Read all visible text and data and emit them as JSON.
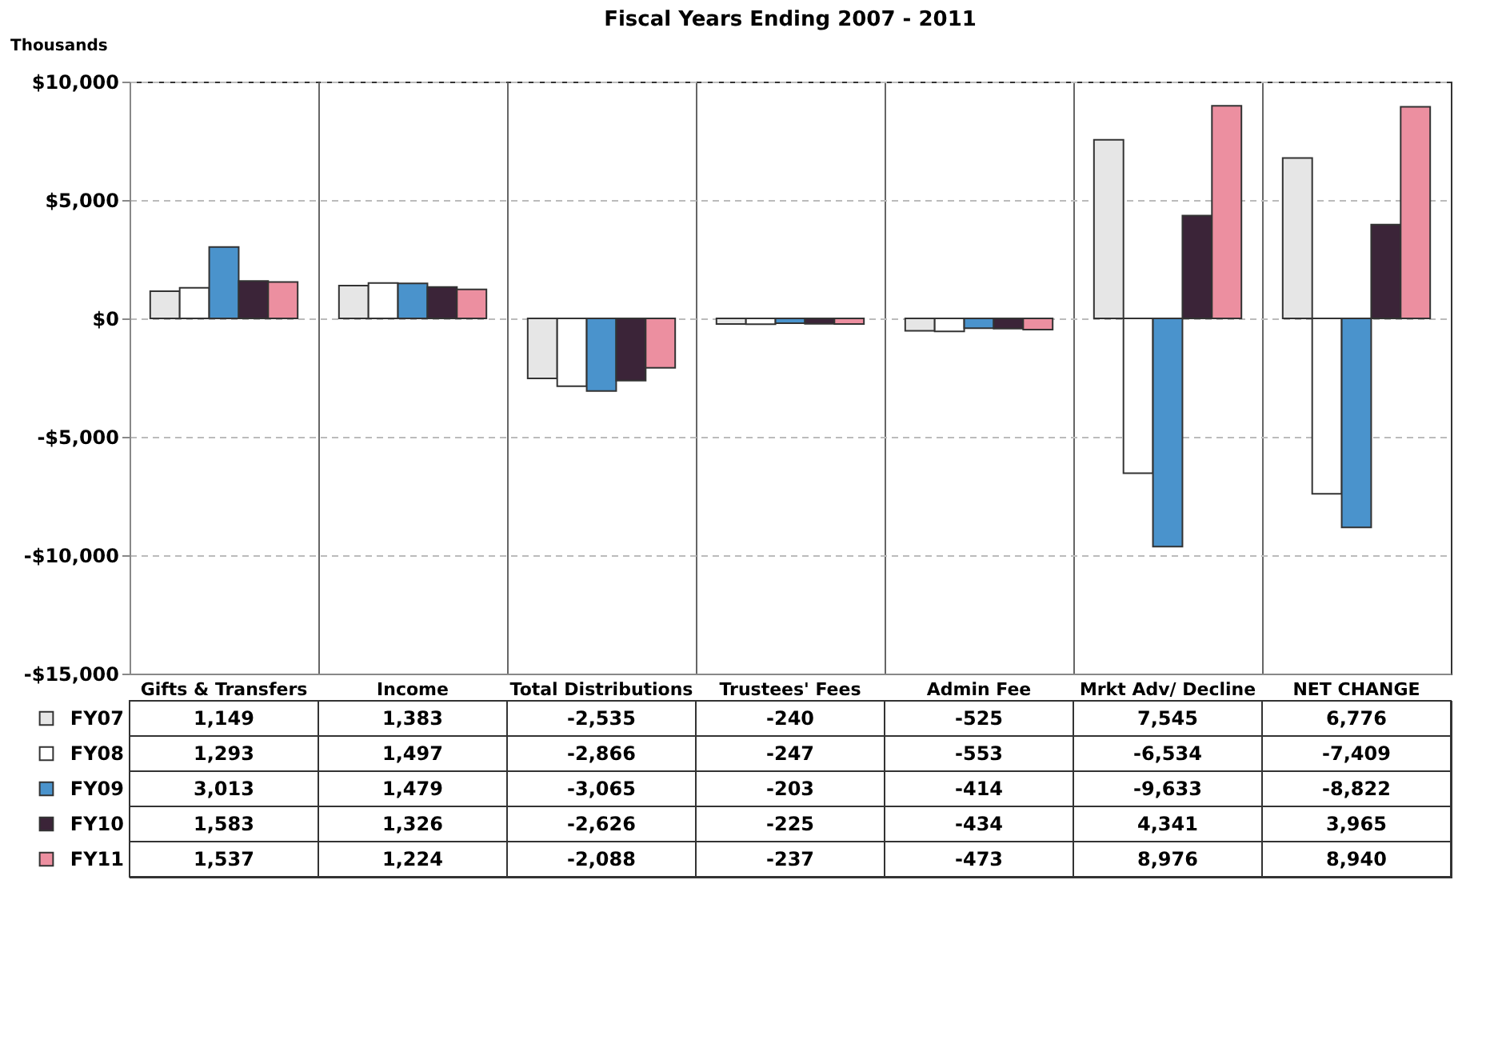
{
  "chart_data": {
    "type": "bar",
    "title": "Fiscal Years Ending 2007 - 2011",
    "ylabel": "Thousands",
    "categories": [
      "Gifts & Transfers",
      "Income",
      "Total Distributions",
      "Trustees' Fees",
      "Admin Fee",
      "Mrkt Adv/ Decline",
      "NET CHANGE"
    ],
    "series": [
      {
        "name": "FY07",
        "color": "#e6e6e6",
        "values": [
          1149,
          1383,
          -2535,
          -240,
          -525,
          7545,
          6776
        ],
        "value_labels": [
          "1,149",
          "1,383",
          "-2,535",
          "-240",
          "-525",
          "7,545",
          "6,776"
        ]
      },
      {
        "name": "FY08",
        "color": "#ffffff",
        "values": [
          1293,
          1497,
          -2866,
          -247,
          -553,
          -6534,
          -7409
        ],
        "value_labels": [
          "1,293",
          "1,497",
          "-2,866",
          "-247",
          "-553",
          "-6,534",
          "-7,409"
        ]
      },
      {
        "name": "FY09",
        "color": "#4a93cc",
        "values": [
          3013,
          1479,
          -3065,
          -203,
          -414,
          -9633,
          -8822
        ],
        "value_labels": [
          "3,013",
          "1,479",
          "-3,065",
          "-203",
          "-414",
          "-9,633",
          "-8,822"
        ]
      },
      {
        "name": "FY10",
        "color": "#3b2438",
        "values": [
          1583,
          1326,
          -2626,
          -225,
          -434,
          4341,
          3965
        ],
        "value_labels": [
          "1,583",
          "1,326",
          "-2,626",
          "-225",
          "-434",
          "4,341",
          "3,965"
        ]
      },
      {
        "name": "FY11",
        "color": "#ec8fa0",
        "values": [
          1537,
          1224,
          -2088,
          -237,
          -473,
          8976,
          8940
        ],
        "value_labels": [
          "1,537",
          "1,224",
          "-2,088",
          "-237",
          "-473",
          "8,976",
          "8,940"
        ]
      }
    ],
    "ylim": [
      -15000,
      10000
    ],
    "yticks": [
      {
        "value": -15000,
        "label": "-$15,000"
      },
      {
        "value": -10000,
        "label": "-$10,000"
      },
      {
        "value": -5000,
        "label": "-$5,000"
      },
      {
        "value": 0,
        "label": "$0"
      },
      {
        "value": 5000,
        "label": "$5,000"
      },
      {
        "value": 10000,
        "label": "$10,000"
      }
    ],
    "grid": true,
    "legend": "bottom"
  }
}
